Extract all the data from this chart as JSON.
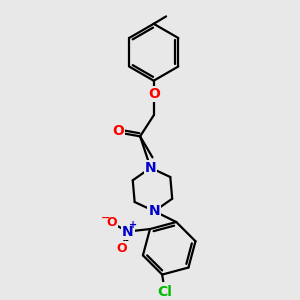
{
  "bg_color": "#e8e8e8",
  "bond_color": "#000000",
  "bond_width": 1.6,
  "atom_colors": {
    "O": "#ff0000",
    "N": "#0000cc",
    "Cl": "#00bb00",
    "C": "#000000"
  },
  "font_size_atom": 10,
  "figsize": [
    3.0,
    3.0
  ],
  "dpi": 100
}
